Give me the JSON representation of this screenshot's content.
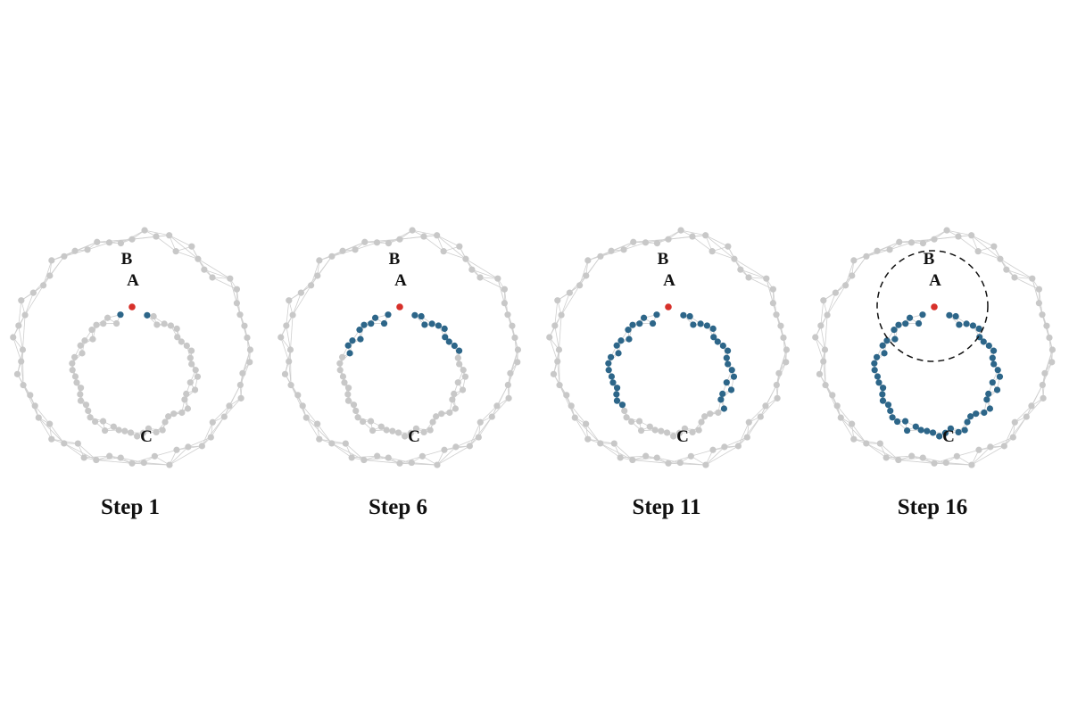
{
  "colors": {
    "inactive_node": "#c8c8c8",
    "inactive_edge": "#cfcfcf",
    "visited_node": "#2d6689",
    "start_node": "#d7302a",
    "label": "#111111",
    "neighborhood_circle": "#111111"
  },
  "labels": {
    "a": "A",
    "b": "B",
    "c": "C"
  },
  "panels": [
    {
      "caption": "Step 1",
      "step": 1,
      "visited_fraction": 0.03,
      "neighborhood_circle": false
    },
    {
      "caption": "Step 6",
      "step": 6,
      "visited_fraction": 0.36,
      "neighborhood_circle": false
    },
    {
      "caption": "Step 11",
      "step": 11,
      "visited_fraction": 0.68,
      "neighborhood_circle": false
    },
    {
      "caption": "Step 16",
      "step": 16,
      "visited_fraction": 1.0,
      "neighborhood_circle": true
    }
  ]
}
